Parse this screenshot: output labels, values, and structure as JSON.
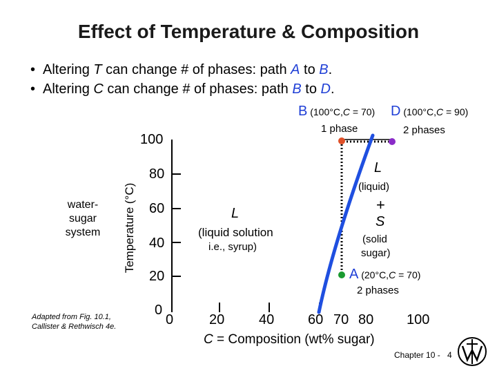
{
  "title": "Effect of Temperature & Composition",
  "bullets": [
    {
      "bullet": "•",
      "prefix": "Altering ",
      "var": "T",
      "middle": " can change # of phases:  path ",
      "p1": "A",
      "to": " to ",
      "p2": "B",
      "end": "."
    },
    {
      "bullet": "•",
      "prefix": "Altering ",
      "var": "C",
      "middle": " can change # of phases:  path ",
      "p1": "B",
      "to": " to ",
      "p2": "D",
      "end": "."
    }
  ],
  "point_labels": {
    "B": {
      "letter": "B",
      "detail_a": " (100°C,",
      "detail_var": "C",
      "detail_b": " = 70)"
    },
    "D": {
      "letter": "D",
      "detail_a": " (100°C,",
      "detail_var": "C",
      "detail_b": " = 90)"
    },
    "A": {
      "letter": "A",
      "detail_a": " (20°C,",
      "detail_var": "C",
      "detail_b": " = 70)"
    }
  },
  "side_caption": {
    "line1": "water-",
    "line2": "sugar",
    "line3": "system"
  },
  "source_note": {
    "line1": "Adapted from Fig. 10.1,",
    "line2": "Callister & Rethwisch 4e."
  },
  "axes": {
    "ylabel": "Temperature (°C)",
    "y_ticks": [
      "100",
      "80",
      "60",
      "40",
      "20",
      "0"
    ],
    "x_ticks": [
      "0",
      "20",
      "40",
      "60",
      "70",
      "80",
      "100"
    ],
    "xlabel_var": "C",
    "xlabel_rest": " = Composition (wt% sugar)"
  },
  "regions": {
    "liquid_left": {
      "symbol": "L",
      "line1": "(liquid solution",
      "line2": "i.e., syrup)"
    },
    "two_phase": {
      "symbol": "L",
      "liquid": "(liquid)",
      "plus": "+",
      "solid_symbol": "S",
      "solid1": "(solid",
      "solid2": "sugar)"
    }
  },
  "phase_counts": {
    "one": "1 phase",
    "two_top": "2 phases",
    "two_bottom": "2 phases"
  },
  "footer": {
    "chapter": "Chapter 10 -",
    "page": "4"
  },
  "colors": {
    "solubility_curve": "#1f4fe0",
    "point_B": "#e05028",
    "point_D": "#8a2bc8",
    "point_A": "#1a9a30",
    "accent_letters": "#1f3fd6"
  }
}
